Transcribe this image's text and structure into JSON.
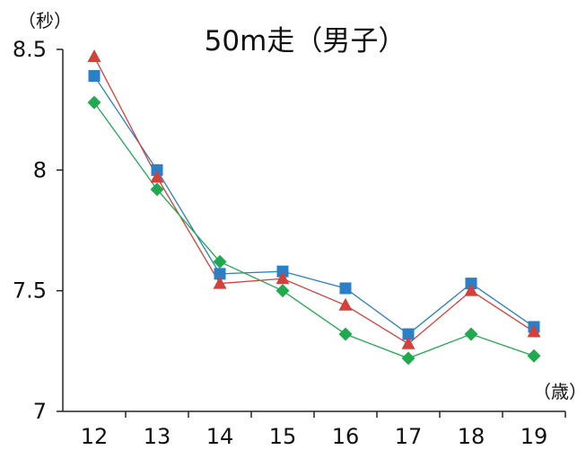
{
  "chart_data": {
    "type": "line",
    "title": "50m走（男子）",
    "ylabel": "（秒）",
    "xlabel": "（歳）",
    "categories": [
      "12",
      "13",
      "14",
      "15",
      "16",
      "17",
      "18",
      "19"
    ],
    "ylim": [
      7,
      8.5
    ],
    "yticks": [
      "8.5",
      "8",
      "7.5",
      "7"
    ],
    "grid": false,
    "legend": "none",
    "series": [
      {
        "color": "#2a7fc6",
        "marker": "square",
        "values": [
          8.39,
          8.0,
          7.57,
          7.58,
          7.51,
          7.32,
          7.53,
          7.35
        ]
      },
      {
        "color": "#d6403a",
        "marker": "triangle",
        "values": [
          8.47,
          7.97,
          7.53,
          7.55,
          7.44,
          7.28,
          7.5,
          7.33
        ]
      },
      {
        "color": "#1faa50",
        "marker": "diamond",
        "values": [
          8.28,
          7.92,
          7.62,
          7.5,
          7.32,
          7.22,
          7.32,
          7.23
        ]
      }
    ]
  }
}
